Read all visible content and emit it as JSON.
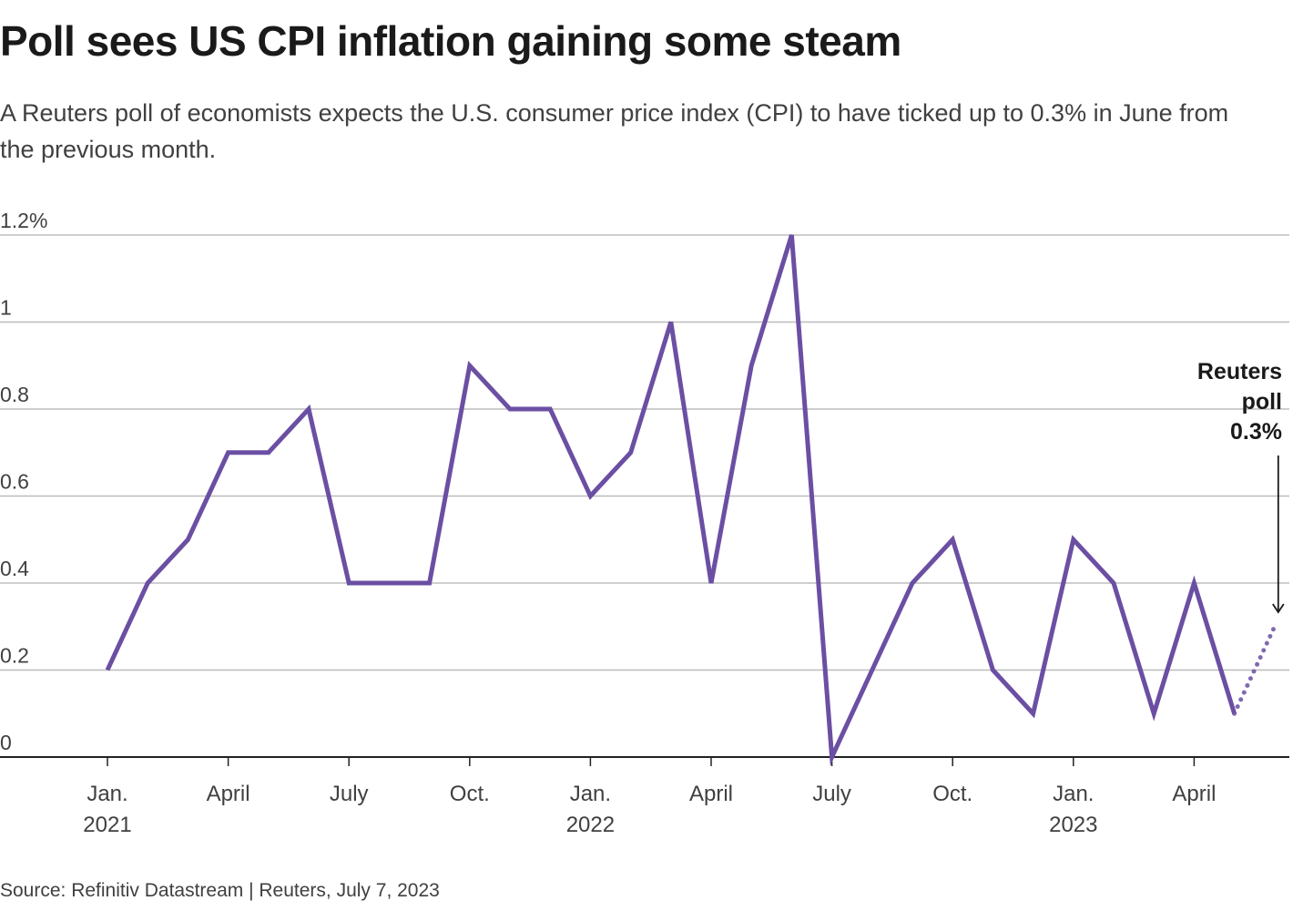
{
  "title": "Poll sees US CPI inflation gaining some steam",
  "subtitle": "A Reuters poll of economists expects the U.S. consumer price index (CPI) to have ticked up to 0.3% in June from the previous month.",
  "source": "Source: Refinitiv Datastream | Reuters, July 7, 2023",
  "colors": {
    "line": "#6b4fa3",
    "grid": "#bdbdbd",
    "axis": "#222222",
    "text": "#404040"
  },
  "chart_data": {
    "type": "line",
    "x_unit": "month",
    "series": [
      {
        "style": "solid",
        "x": [
          "2021-01",
          "2021-02",
          "2021-03",
          "2021-04",
          "2021-05",
          "2021-06",
          "2021-07",
          "2021-08",
          "2021-09",
          "2021-10",
          "2021-11",
          "2021-12",
          "2022-01",
          "2022-02",
          "2022-03",
          "2022-04",
          "2022-05",
          "2022-06",
          "2022-07",
          "2022-08",
          "2022-09",
          "2022-10",
          "2022-11",
          "2022-12",
          "2023-01",
          "2023-02",
          "2023-03",
          "2023-04",
          "2023-05"
        ],
        "values": [
          0.2,
          0.4,
          0.5,
          0.7,
          0.7,
          0.8,
          0.4,
          0.4,
          0.4,
          0.9,
          0.8,
          0.8,
          0.6,
          0.7,
          1.0,
          0.4,
          0.9,
          1.2,
          0.0,
          0.2,
          0.4,
          0.5,
          0.2,
          0.1,
          0.5,
          0.4,
          0.1,
          0.4,
          0.1
        ]
      },
      {
        "style": "dotted",
        "x": [
          "2023-05",
          "2023-06"
        ],
        "values": [
          0.1,
          0.3
        ]
      }
    ],
    "ylim": [
      0,
      1.2
    ],
    "y_ticks": [
      {
        "value": 1.2,
        "label": "1.2%"
      },
      {
        "value": 1.0,
        "label": "1"
      },
      {
        "value": 0.8,
        "label": "0.8"
      },
      {
        "value": 0.6,
        "label": "0.6"
      },
      {
        "value": 0.4,
        "label": "0.4"
      },
      {
        "value": 0.2,
        "label": "0.2"
      },
      {
        "value": 0.0,
        "label": "0"
      }
    ],
    "x_ticks": [
      {
        "x": "2021-01",
        "label": "Jan.",
        "year": "2021"
      },
      {
        "x": "2021-04",
        "label": "April",
        "year": ""
      },
      {
        "x": "2021-07",
        "label": "July",
        "year": ""
      },
      {
        "x": "2021-10",
        "label": "Oct.",
        "year": ""
      },
      {
        "x": "2022-01",
        "label": "Jan.",
        "year": "2022"
      },
      {
        "x": "2022-04",
        "label": "April",
        "year": ""
      },
      {
        "x": "2022-07",
        "label": "July",
        "year": ""
      },
      {
        "x": "2022-10",
        "label": "Oct.",
        "year": ""
      },
      {
        "x": "2023-01",
        "label": "Jan.",
        "year": "2023"
      },
      {
        "x": "2023-04",
        "label": "April",
        "year": ""
      }
    ],
    "annotation": {
      "x": "2023-06",
      "value": 0.3,
      "lines": [
        "Reuters",
        "poll",
        "0.3%"
      ]
    },
    "grid": true
  }
}
